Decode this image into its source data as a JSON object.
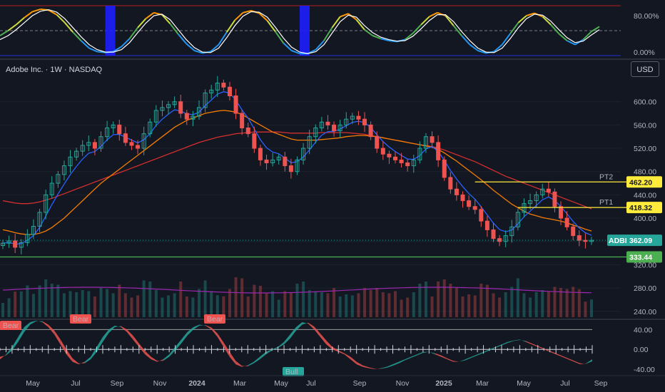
{
  "header": {
    "title": "Adobe Inc. · 1W · NASDAQ",
    "currency": "USD"
  },
  "colors": {
    "bg": "#131722",
    "up": "#26a69a",
    "down": "#ef5350",
    "grid": "#1e222d",
    "level": "#ffeb3b",
    "support": "#4caf50",
    "sma_red": "#d32f2f",
    "sma_orange": "#f57c00",
    "ema_blue": "#2962ff",
    "volume_ma": "#9c27b0"
  },
  "chart_data": [
    {
      "type": "line",
      "title": "Stochastic RSI",
      "yticks": [
        "80.00%",
        "0.00%"
      ],
      "ylim": [
        0,
        100
      ],
      "grid": false,
      "series": [
        {
          "values": [
            40,
            50,
            62,
            76,
            88,
            93,
            91,
            82,
            66,
            47,
            30,
            15,
            8,
            6,
            8,
            18,
            34,
            56,
            74,
            86,
            82,
            64,
            43,
            24,
            10,
            5,
            8,
            22,
            47,
            71,
            86,
            90,
            85,
            70,
            48,
            25,
            10,
            4,
            4,
            12,
            30,
            56,
            78,
            84,
            72,
            52,
            40,
            34,
            30,
            28,
            32,
            45,
            62,
            78,
            86,
            80,
            60,
            40,
            22,
            10,
            5,
            8,
            22,
            44,
            66,
            80,
            85,
            78,
            62,
            44,
            30,
            22,
            32,
            48,
            58
          ]
        },
        {
          "values": [
            32,
            40,
            52,
            66,
            80,
            89,
            92,
            87,
            74,
            56,
            38,
            22,
            12,
            7,
            7,
            12,
            26,
            46,
            65,
            80,
            83,
            72,
            52,
            32,
            16,
            7,
            6,
            15,
            36,
            60,
            79,
            88,
            87,
            77,
            57,
            35,
            17,
            7,
            4,
            8,
            22,
            45,
            68,
            81,
            77,
            60,
            46,
            37,
            32,
            29,
            30,
            39,
            54,
            70,
            82,
            82,
            68,
            48,
            30,
            15,
            7,
            6,
            15,
            34,
            56,
            74,
            83,
            81,
            69,
            52,
            36,
            26,
            29,
            41,
            52
          ]
        }
      ],
      "highlight_weeks": [
        [
          13,
          14
        ],
        [
          37,
          38
        ]
      ]
    },
    {
      "type": "candlestick",
      "title": "Adobe Inc. · 1W · NASDAQ",
      "x_ticks": [
        "May",
        "Jul",
        "Sep",
        "Nov",
        "2024",
        "Mar",
        "May",
        "Jul",
        "Sep",
        "Nov",
        "2025",
        "Mar",
        "May",
        "Jul",
        "Sep"
      ],
      "y_ticks": [
        600,
        560,
        520,
        480,
        440,
        400,
        360,
        320,
        280,
        240
      ],
      "y_tick_labels": [
        "600.00",
        "560.00",
        "520.00",
        "480.00",
        "440.00",
        "400.00",
        "360.00",
        "320.00",
        "280.00",
        "240.00"
      ],
      "ylim": [
        230,
        640
      ],
      "grid": true,
      "close": [
        357,
        361,
        350,
        358,
        372,
        386,
        410,
        440,
        460,
        475,
        490,
        505,
        515,
        525,
        530,
        520,
        540,
        555,
        560,
        545,
        530,
        525,
        520,
        545,
        565,
        585,
        590,
        595,
        600,
        580,
        570,
        575,
        590,
        615,
        620,
        632,
        625,
        610,
        580,
        555,
        545,
        520,
        500,
        495,
        500,
        505,
        490,
        480,
        500,
        520,
        540,
        555,
        565,
        560,
        550,
        560,
        570,
        575,
        570,
        560,
        540,
        520,
        510,
        505,
        500,
        495,
        490,
        500,
        520,
        540,
        530,
        500,
        470,
        450,
        440,
        430,
        420,
        415,
        395,
        380,
        365,
        360,
        370,
        385,
        410,
        425,
        430,
        440,
        450,
        445,
        420,
        400,
        385,
        370,
        362,
        360,
        362
      ],
      "candles_note": "weekly OHLC approximated from closes",
      "levels": [
        {
          "label": "PT2",
          "value": 462.2,
          "tag": "462.20"
        },
        {
          "label": "PT1",
          "value": 418.32,
          "tag": "418.32"
        },
        {
          "label": "",
          "value": 333.44,
          "tag": "333.44"
        }
      ],
      "last_price": {
        "symbol": "ADBE",
        "value": 362.09,
        "tag": "362.09"
      },
      "sma_red": [
        430,
        428,
        426,
        425,
        425,
        426,
        428,
        431,
        434,
        438,
        442,
        446,
        450,
        454,
        458,
        462,
        466,
        470,
        474,
        478,
        482,
        486,
        490,
        494,
        498,
        502,
        506,
        510,
        514,
        518,
        522,
        526,
        530,
        533,
        536,
        539,
        541,
        543,
        545,
        546,
        547,
        548,
        548,
        548,
        548,
        548,
        547,
        546,
        546,
        546,
        546,
        546,
        547,
        547,
        547,
        547,
        547,
        546,
        545,
        544,
        542,
        540,
        538,
        536,
        534,
        532,
        530,
        528,
        526,
        525,
        523,
        520,
        517,
        513,
        509,
        505,
        501,
        497,
        492,
        487,
        482,
        477,
        472,
        468,
        464,
        460,
        456,
        452,
        448,
        444,
        440,
        436,
        432,
        428,
        424,
        420,
        416
      ],
      "sma_orange": [
        380,
        378,
        375,
        373,
        372,
        372,
        374,
        378,
        384,
        392,
        400,
        410,
        420,
        430,
        440,
        450,
        460,
        468,
        476,
        484,
        492,
        500,
        508,
        516,
        524,
        532,
        540,
        548,
        556,
        562,
        568,
        572,
        576,
        580,
        582,
        584,
        585,
        584,
        582,
        578,
        572,
        566,
        560,
        554,
        548,
        544,
        540,
        536,
        534,
        534,
        534,
        534,
        535,
        536,
        537,
        538,
        540,
        541,
        542,
        542,
        541,
        540,
        538,
        536,
        534,
        532,
        530,
        528,
        526,
        524,
        522,
        518,
        512,
        505,
        498,
        490,
        482,
        474,
        466,
        457,
        448,
        440,
        432,
        424,
        418,
        412,
        407,
        404,
        401,
        399,
        397,
        395,
        392,
        388,
        385,
        381,
        378
      ]
    },
    {
      "type": "line",
      "title": "Momentum Oscillator",
      "y_ticks": [
        40,
        0,
        -40
      ],
      "y_tick_labels": [
        "40.00",
        "0.00",
        "-40.00"
      ],
      "ylim": [
        -50,
        55
      ],
      "annotations": [
        "Bear",
        "Bear",
        "Bear",
        "Bull"
      ],
      "series": [
        {
          "values": [
            -20,
            -10,
            5,
            25,
            45,
            55,
            58,
            55,
            45,
            30,
            10,
            -10,
            -25,
            -30,
            -25,
            -15,
            5,
            25,
            40,
            48,
            45,
            35,
            20,
            5,
            -10,
            -20,
            -25,
            -20,
            -10,
            5,
            20,
            35,
            45,
            50,
            48,
            40,
            25,
            5,
            -15,
            -30,
            -35,
            -32,
            -25,
            -15,
            -5,
            0,
            5,
            15,
            30,
            45,
            55,
            52,
            40,
            25,
            10,
            0,
            -5,
            -10,
            -20,
            -30,
            -35,
            -38,
            -40,
            -38,
            -35,
            -30,
            -25,
            -20,
            -15,
            -10,
            -5,
            -5,
            -10,
            -15,
            -20,
            -25,
            -25,
            -20,
            -15,
            -10,
            -5,
            0,
            5,
            10,
            15,
            18,
            20,
            15,
            10,
            5,
            0,
            -5,
            -10,
            -15,
            -20,
            -25,
            -30,
            -28,
            -20
          ]
        },
        {
          "values": [
            -15,
            -12,
            -2,
            15,
            35,
            50,
            57,
            57,
            50,
            38,
            20,
            0,
            -18,
            -28,
            -28,
            -20,
            -5,
            15,
            33,
            45,
            47,
            40,
            28,
            12,
            -3,
            -15,
            -23,
            -23,
            -15,
            -2,
            12,
            28,
            40,
            48,
            49,
            44,
            32,
            14,
            -5,
            -23,
            -33,
            -34,
            -28,
            -20,
            -10,
            -2,
            3,
            10,
            22,
            38,
            50,
            54,
            46,
            32,
            18,
            5,
            -2,
            -8,
            -15,
            -25,
            -32,
            -36,
            -39,
            -39,
            -37,
            -33,
            -28,
            -22,
            -17,
            -12,
            -7,
            -5,
            -8,
            -12,
            -18,
            -23,
            -25,
            -22,
            -17,
            -12,
            -7,
            -2,
            3,
            8,
            13,
            17,
            19,
            17,
            12,
            7,
            2,
            -3,
            -8,
            -13,
            -18,
            -23,
            -28,
            -29,
            -24
          ]
        }
      ]
    }
  ]
}
